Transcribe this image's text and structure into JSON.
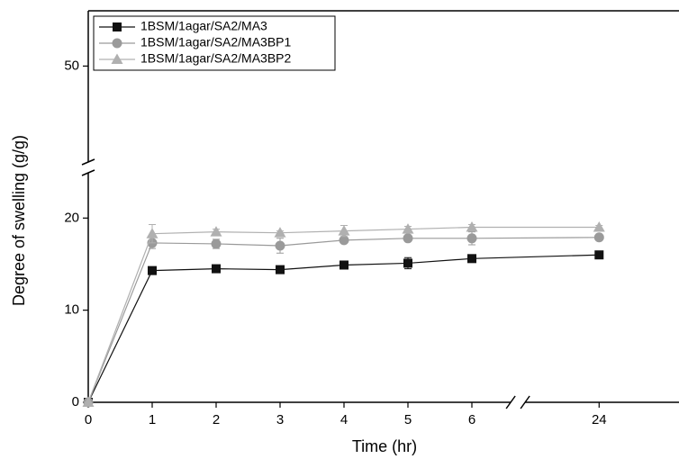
{
  "chart_data": {
    "type": "line",
    "x_label": "Time (hr)",
    "y_label": "Degree of swelling (g/g)",
    "x": [
      0,
      1,
      2,
      3,
      4,
      5,
      6,
      24
    ],
    "xlim": [
      0,
      26
    ],
    "xbreak": [
      6.72,
      22.73
    ],
    "xticks": [
      0,
      1,
      2,
      3,
      4,
      5,
      6,
      24
    ],
    "ylim": [
      0,
      56
    ],
    "ybreak": [
      25.5,
      39
    ],
    "yticks": [
      0,
      10,
      20,
      50
    ],
    "legend": "top-left",
    "series": [
      {
        "name": "1BSM/1agar/SA2/MA3",
        "color": "#111111",
        "marker": "square",
        "values": [
          0,
          14.3,
          14.5,
          14.4,
          14.9,
          15.1,
          15.6,
          16.0
        ],
        "errors": [
          0,
          0.3,
          0.4,
          0.3,
          0.4,
          0.6,
          0.2,
          0.2
        ]
      },
      {
        "name": "1BSM/1agar/SA2/MA3BP1",
        "color": "#9a9a9a",
        "marker": "circle",
        "values": [
          0,
          17.3,
          17.2,
          17.0,
          17.6,
          17.8,
          17.8,
          17.9
        ],
        "errors": [
          0,
          0.6,
          0.5,
          0.8,
          0.3,
          0.3,
          0.7,
          0.2
        ]
      },
      {
        "name": "1BSM/1agar/SA2/MA3BP2",
        "color": "#b0b0b0",
        "marker": "triangle",
        "values": [
          0,
          18.3,
          18.5,
          18.4,
          18.6,
          18.8,
          19.0,
          19.0
        ],
        "errors": [
          0,
          1.0,
          0.3,
          0.2,
          0.6,
          0.3,
          0.3,
          0.2
        ]
      }
    ]
  }
}
